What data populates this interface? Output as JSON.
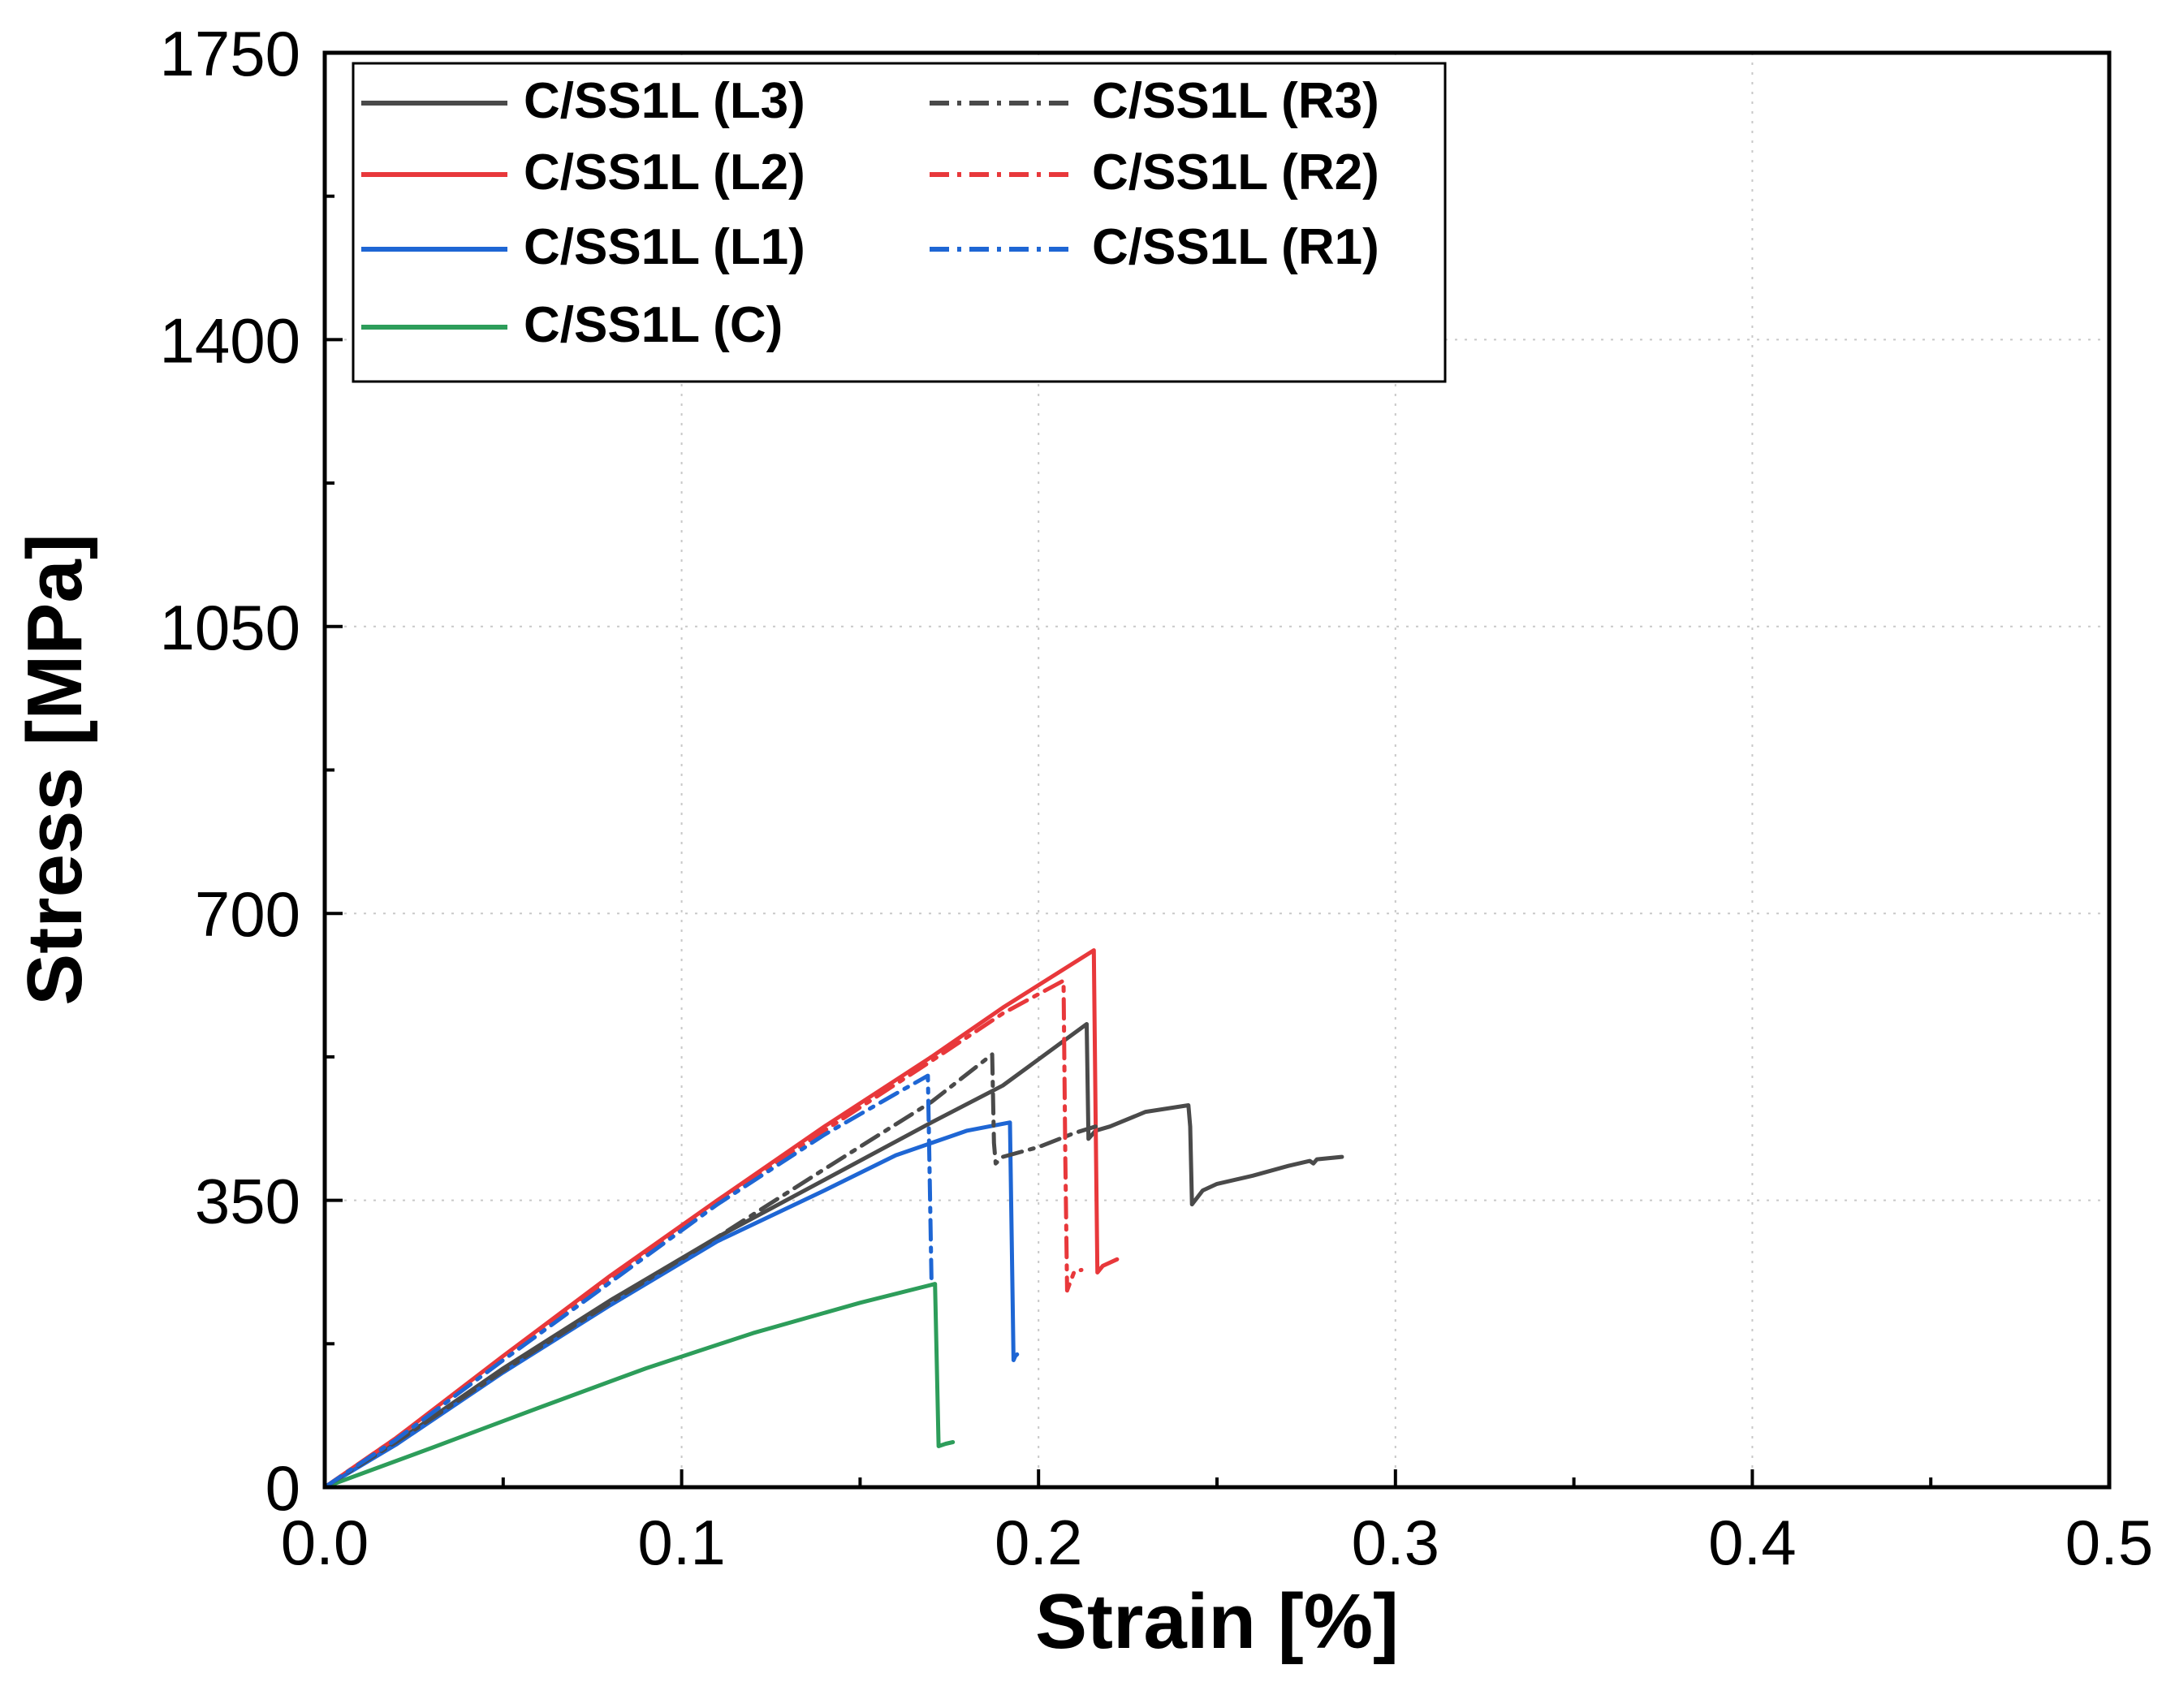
{
  "chart_data": {
    "type": "line",
    "title": "",
    "xlabel": "Strain [%]",
    "ylabel": "Stress [MPa]",
    "xlim": [
      0.0,
      0.5
    ],
    "ylim": [
      0,
      1750
    ],
    "x_ticks": [
      0.0,
      0.1,
      0.2,
      0.3,
      0.4,
      0.5
    ],
    "x_tick_labels": [
      "0.0",
      "0.1",
      "0.2",
      "0.3",
      "0.4",
      "0.5"
    ],
    "x_minor_ticks": [
      0.05,
      0.15,
      0.25,
      0.35,
      0.45
    ],
    "y_ticks": [
      0,
      350,
      700,
      1050,
      1400,
      1750
    ],
    "y_tick_labels": [
      "0",
      "350",
      "700",
      "1050",
      "1400",
      "1750"
    ],
    "y_minor_ticks": [
      175,
      525,
      875,
      1225,
      1575
    ],
    "grid": "dotted, major ticks",
    "legend_position": "top-left",
    "series": [
      {
        "name": "C/SS1L (L3)",
        "color": "#4a4a4a",
        "dash": "solid",
        "x": [
          0.0,
          0.02,
          0.05,
          0.08,
          0.11,
          0.14,
          0.17,
          0.19,
          0.2135,
          0.214,
          0.216,
          0.22,
          0.23,
          0.242,
          0.2425,
          0.243,
          0.246,
          0.25,
          0.26,
          0.27,
          0.276,
          0.277,
          0.278,
          0.285
        ],
        "y": [
          0,
          55,
          145,
          228,
          305,
          375,
          445,
          490,
          565,
          425,
          435,
          440,
          458,
          466,
          440,
          345,
          362,
          370,
          380,
          392,
          398,
          395,
          400,
          403
        ]
      },
      {
        "name": "C/SS1L (L2)",
        "color": "#e8383b",
        "dash": "solid",
        "x": [
          0.0,
          0.02,
          0.05,
          0.08,
          0.11,
          0.14,
          0.17,
          0.19,
          0.2155,
          0.216,
          0.2165,
          0.218,
          0.222
        ],
        "y": [
          0,
          60,
          160,
          258,
          350,
          440,
          525,
          585,
          655,
          450,
          262,
          270,
          278
        ]
      },
      {
        "name": "C/SS1L (L1)",
        "color": "#1e66d4",
        "dash": "solid",
        "x": [
          0.0,
          0.02,
          0.05,
          0.08,
          0.11,
          0.14,
          0.16,
          0.18,
          0.192,
          0.1925,
          0.193,
          0.1935,
          0.194
        ],
        "y": [
          0,
          52,
          140,
          222,
          300,
          362,
          405,
          435,
          445,
          300,
          155,
          160,
          162
        ]
      },
      {
        "name": "C/SS1L (C)",
        "color": "#2d9d5a",
        "dash": "solid",
        "x": [
          0.0,
          0.03,
          0.06,
          0.09,
          0.12,
          0.15,
          0.171,
          0.1715,
          0.172,
          0.174,
          0.176
        ],
        "y": [
          0,
          48,
          97,
          145,
          188,
          225,
          248,
          150,
          50,
          53,
          55
        ]
      },
      {
        "name": "C/SS1L (R3)",
        "color": "#4a4a4a",
        "dash": "dashdot",
        "x": [
          0.0,
          0.02,
          0.05,
          0.08,
          0.11,
          0.14,
          0.17,
          0.187,
          0.1875,
          0.188,
          0.19,
          0.2,
          0.21,
          0.216
        ],
        "y": [
          0,
          55,
          142,
          225,
          305,
          388,
          470,
          528,
          420,
          395,
          403,
          415,
          432,
          440
        ]
      },
      {
        "name": "C/SS1L (R2)",
        "color": "#e8383b",
        "dash": "dashdot",
        "x": [
          0.0,
          0.02,
          0.05,
          0.08,
          0.11,
          0.14,
          0.17,
          0.19,
          0.207,
          0.2075,
          0.208,
          0.21,
          0.212
        ],
        "y": [
          0,
          60,
          158,
          255,
          348,
          435,
          520,
          578,
          618,
          400,
          240,
          263,
          265
        ]
      },
      {
        "name": "C/SS1L (R1)",
        "color": "#1e66d4",
        "dash": "dashdot",
        "x": [
          0.0,
          0.02,
          0.05,
          0.08,
          0.11,
          0.14,
          0.16,
          0.169,
          0.1695,
          0.17
        ],
        "y": [
          0,
          58,
          155,
          250,
          345,
          430,
          480,
          502,
          380,
          255
        ]
      }
    ]
  }
}
